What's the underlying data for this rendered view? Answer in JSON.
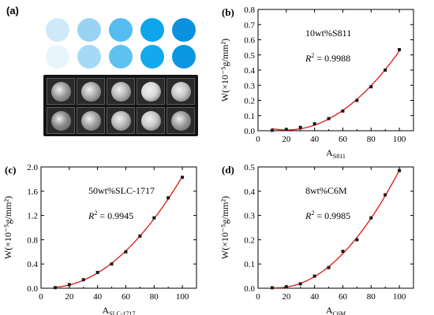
{
  "panel_a": {
    "label": "(a)",
    "top_row_colors": [
      "#cfe9fa",
      "#99d3f4",
      "#55bdf0",
      "#0ea6ea",
      "#0a92df"
    ],
    "bottom_row_colors": [
      "#e8f5fd",
      "#a6d9f6",
      "#5dc2f1",
      "#12aaec",
      "#0a96e2"
    ]
  },
  "chart_data": [
    {
      "type": "scatter",
      "label": "(b)",
      "annotation": "10wt%S811",
      "r2": "= 0.9988",
      "xlabel_main": "A",
      "xlabel_sub": "S811",
      "ylabel": "W(×10⁻⁵g/mm²)",
      "xlim": [
        0,
        110
      ],
      "ylim": [
        0,
        0.8
      ],
      "xticks": [
        0,
        20,
        40,
        60,
        80,
        100
      ],
      "yticks": [
        0.0,
        0.1,
        0.2,
        0.3,
        0.4,
        0.5,
        0.6,
        0.7,
        0.8
      ],
      "ytick_labels": [
        "0.0",
        "0.1",
        "0.2",
        "0.3",
        "0.4",
        "0.5",
        "0.6",
        "0.7",
        "0.8"
      ],
      "x": [
        10,
        20,
        30,
        40,
        50,
        60,
        70,
        80,
        90,
        100
      ],
      "y": [
        0.003,
        0.008,
        0.022,
        0.046,
        0.08,
        0.13,
        0.2,
        0.29,
        0.4,
        0.535
      ],
      "fit_color": "#e01515"
    },
    {
      "type": "scatter",
      "label": "(c)",
      "annotation": "50wt%SLC-1717",
      "r2": "= 0.9945",
      "xlabel_main": "A",
      "xlabel_sub": "SLC-1717",
      "ylabel": "W(×10⁻⁵g/mm²)",
      "xlim": [
        0,
        110
      ],
      "ylim": [
        0,
        2.0
      ],
      "xticks": [
        0,
        20,
        40,
        60,
        80,
        100
      ],
      "yticks": [
        0.0,
        0.4,
        0.8,
        1.2,
        1.6,
        2.0
      ],
      "ytick_labels": [
        "0.0",
        "0.4",
        "0.8",
        "1.2",
        "1.6",
        "2.0"
      ],
      "x": [
        10,
        20,
        30,
        40,
        50,
        60,
        70,
        80,
        90,
        100
      ],
      "y": [
        0.01,
        0.06,
        0.14,
        0.26,
        0.4,
        0.6,
        0.86,
        1.16,
        1.49,
        1.83
      ],
      "fit_color": "#e01515"
    },
    {
      "type": "scatter",
      "label": "(d)",
      "annotation": "8wt%C6M",
      "r2": "= 0.9985",
      "xlabel_main": "A",
      "xlabel_sub": "C6M",
      "ylabel": "W(×10⁻⁵g/mm²)",
      "xlim": [
        0,
        110
      ],
      "ylim": [
        0,
        0.5
      ],
      "xticks": [
        0,
        20,
        40,
        60,
        80,
        100
      ],
      "yticks": [
        0.0,
        0.1,
        0.2,
        0.3,
        0.4,
        0.5
      ],
      "ytick_labels": [
        "0.0",
        "0.1",
        "0.2",
        "0.3",
        "0.4",
        "0.5"
      ],
      "x": [
        10,
        20,
        30,
        40,
        50,
        60,
        70,
        80,
        90,
        100
      ],
      "y": [
        0.002,
        0.006,
        0.018,
        0.05,
        0.085,
        0.152,
        0.2,
        0.29,
        0.385,
        0.485
      ],
      "fit_color": "#e01515"
    }
  ]
}
